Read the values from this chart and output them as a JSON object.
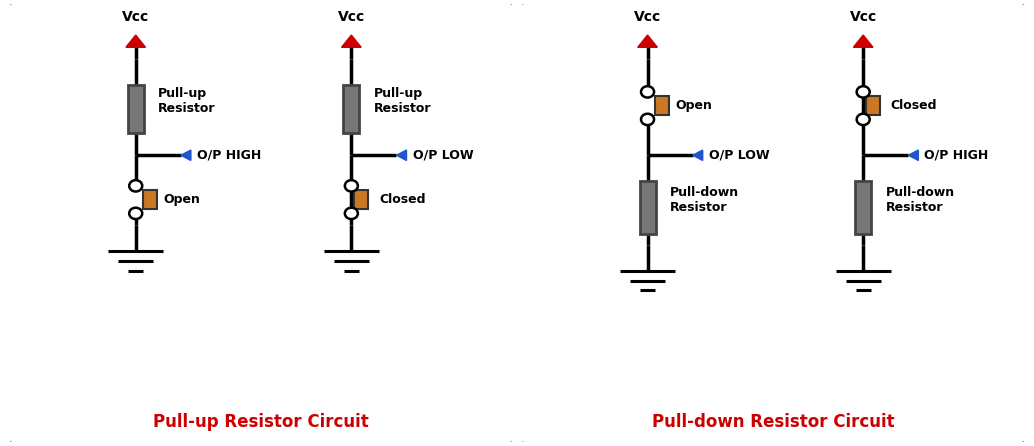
{
  "background_color": "#ffffff",
  "border_color": "#444444",
  "line_color": "#000000",
  "resistor_color": "#777777",
  "switch_color": "#cc7722",
  "vcc_arrow_color": "#cc0000",
  "output_arrow_color": "#2255cc",
  "ground_color": "#000000",
  "title_pullup": "Pull-up Resistor Circuit",
  "title_pulldown": "Pull-down Resistor Circuit",
  "title_color": "#cc0000",
  "title_fontsize": 12,
  "label_fontsize": 10,
  "small_fontsize": 9,
  "vcc_label": "Vcc",
  "op_high": "O/P HIGH",
  "op_low": "O/P LOW",
  "open_label": "Open",
  "closed_label": "Closed",
  "resistor_pullup": "Pull-up\nResistor",
  "resistor_pulldown": "Pull-down\nResistor"
}
